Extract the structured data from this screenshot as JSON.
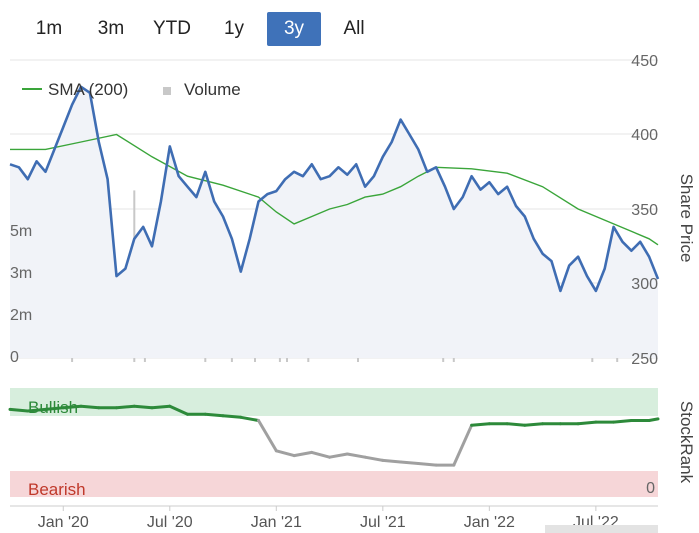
{
  "range_selector": {
    "buttons": [
      {
        "label": "1m",
        "active": false
      },
      {
        "label": "3m",
        "active": false
      },
      {
        "label": "YTD",
        "active": false
      },
      {
        "label": "1y",
        "active": false
      },
      {
        "label": "3y",
        "active": true
      },
      {
        "label": "All",
        "active": false
      }
    ]
  },
  "colors": {
    "price_line": "#3f6db3",
    "sma_line": "#3aa53a",
    "volume_bars": "#c8c8c8",
    "price_area": "#f1f3f8",
    "bullish_band": "#d7eedd",
    "bearish_band": "#f6d6d8",
    "stockrank_bullish": "#2d8a3a",
    "stockrank_neutral": "#a0a0a0",
    "axis_text": "#666666"
  },
  "chart_data": [
    {
      "type": "line",
      "ylabel": "Share Price",
      "ylim": [
        250,
        450
      ],
      "yticks": [
        450,
        400,
        350,
        300,
        250
      ],
      "volume_ticks": [
        "5m",
        "3m",
        "2m",
        "0"
      ],
      "volume_tick_values": [
        5,
        3,
        2,
        0
      ],
      "volume_max": 8,
      "xlim": [
        0,
        36.5
      ],
      "x_ticks": [
        {
          "label": "Jan '20",
          "x": 3
        },
        {
          "label": "Jul '20",
          "x": 9
        },
        {
          "label": "Jan '21",
          "x": 15
        },
        {
          "label": "Jul '21",
          "x": 21
        },
        {
          "label": "Jan '22",
          "x": 27
        },
        {
          "label": "Jul '22",
          "x": 33
        }
      ],
      "legend": [
        {
          "name": "SMA (200)",
          "marker": "line"
        },
        {
          "name": "Volume",
          "marker": "square"
        }
      ],
      "legend_position": "top-left",
      "series": [
        {
          "name": "Price",
          "x": [
            0,
            0.5,
            1,
            1.5,
            2,
            2.5,
            3,
            3.5,
            4,
            4.5,
            5,
            5.5,
            6,
            6.5,
            7,
            7.5,
            8,
            8.5,
            9,
            9.5,
            10,
            10.5,
            11,
            11.5,
            12,
            12.5,
            13,
            13.5,
            14,
            14.5,
            15,
            15.5,
            16,
            16.5,
            17,
            17.5,
            18,
            18.5,
            19,
            19.5,
            20,
            20.5,
            21,
            21.5,
            22,
            22.5,
            23,
            23.5,
            24,
            24.5,
            25,
            25.5,
            26,
            26.5,
            27,
            27.5,
            28,
            28.5,
            29,
            29.5,
            30,
            30.5,
            31,
            31.5,
            32,
            32.5,
            33,
            33.5,
            34,
            34.5,
            35,
            35.5,
            36,
            36.5
          ],
          "values": [
            380,
            378,
            370,
            382,
            375,
            390,
            405,
            420,
            432,
            428,
            395,
            370,
            305,
            310,
            330,
            338,
            325,
            355,
            392,
            372,
            365,
            358,
            375,
            355,
            345,
            330,
            308,
            330,
            355,
            360,
            362,
            370,
            375,
            372,
            380,
            370,
            372,
            378,
            373,
            380,
            365,
            372,
            385,
            395,
            410,
            400,
            390,
            375,
            378,
            365,
            350,
            358,
            372,
            363,
            368,
            360,
            365,
            352,
            345,
            330,
            320,
            315,
            295,
            312,
            318,
            305,
            295,
            310,
            338,
            328,
            322,
            328,
            318,
            303
          ]
        },
        {
          "name": "SMA (200)",
          "x": [
            0,
            2,
            4,
            6,
            8,
            10,
            12,
            14,
            15,
            16,
            17,
            18,
            19,
            20,
            21,
            22,
            23,
            24,
            26,
            28,
            30,
            32,
            34,
            36,
            36.5
          ],
          "values": [
            390,
            390,
            395,
            400,
            385,
            372,
            366,
            358,
            348,
            340,
            345,
            350,
            353,
            358,
            360,
            365,
            372,
            378,
            377,
            374,
            365,
            350,
            340,
            330,
            326
          ]
        }
      ],
      "volume": {
        "x": [
          3.5,
          7,
          7.6,
          11,
          12.5,
          13.8,
          15.2,
          15.6,
          16.8,
          19.6,
          24.4,
          25,
          32.8,
          34.2,
          36.1
        ],
        "values": [
          0.8,
          6.5,
          1.1,
          0.5,
          0.6,
          0.7,
          0.9,
          0.6,
          1.8,
          0.6,
          0.5,
          0.5,
          0.8,
          0.4,
          0.6
        ]
      }
    },
    {
      "type": "line",
      "ylabel": "StockRank",
      "ylim": [
        0,
        100
      ],
      "yticks": [
        "0"
      ],
      "bands": [
        "Bullish",
        "Bearish"
      ],
      "series": [
        {
          "name": "StockRank",
          "x": [
            0,
            1,
            2,
            3,
            4,
            5,
            6,
            7,
            8,
            9,
            10,
            11,
            12,
            13,
            14,
            15,
            16,
            17,
            18,
            19,
            20,
            21,
            22,
            23,
            24,
            25,
            26,
            27,
            28,
            29,
            30,
            31,
            32,
            33,
            34,
            35,
            36,
            36.5
          ],
          "values": [
            85,
            84,
            85,
            86,
            87,
            86,
            86,
            87,
            86,
            87,
            82,
            82,
            81,
            80,
            78,
            59,
            56,
            58,
            55,
            57,
            55,
            53,
            52,
            51,
            50,
            50,
            75,
            76,
            76,
            75,
            76,
            76,
            76,
            77,
            77,
            78,
            78,
            79
          ]
        }
      ]
    }
  ]
}
